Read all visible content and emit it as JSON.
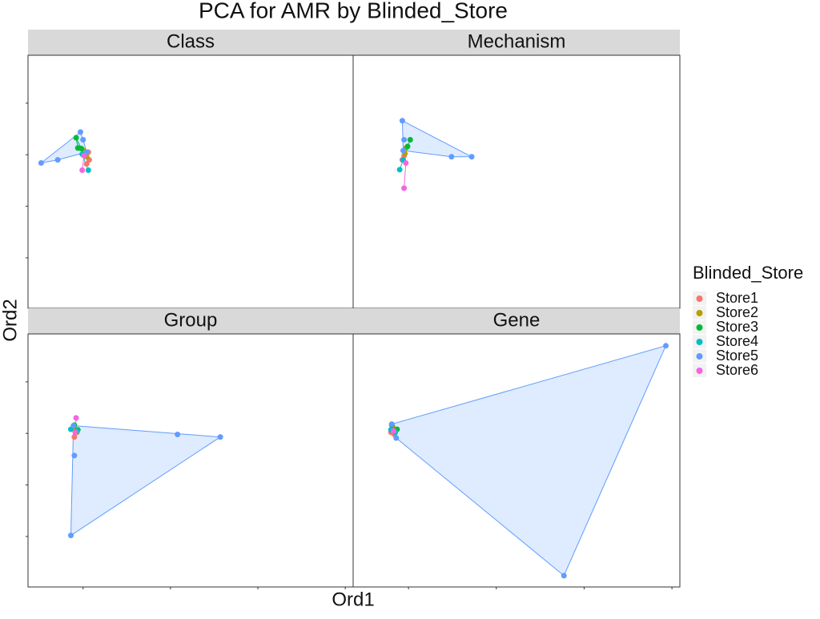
{
  "title": "PCA for AMR by Blinded_Store",
  "x_label": "Ord1",
  "y_label": "Ord2",
  "legend_title": "Blinded_Store",
  "chart_data": [
    {
      "type": "scatter",
      "title": "Class",
      "hull": true,
      "axis_text": false,
      "xlim": [
        -0.63,
        3.09
      ],
      "ylim": [
        -0.98,
        3.93
      ],
      "xticks": [
        0,
        1,
        2,
        3
      ],
      "yticks": [
        0,
        1,
        2,
        3
      ],
      "series": [
        {
          "name": "Store1",
          "color": "#F8766D",
          "x": [
            0.06,
            0.07,
            0.04
          ],
          "y": [
            2.05,
            1.9,
            1.82
          ]
        },
        {
          "name": "Store2",
          "color": "#B79F00",
          "x": [
            0.01,
            0.04
          ],
          "y": [
            2.08,
            1.96
          ]
        },
        {
          "name": "Store3",
          "color": "#00BA38",
          "x": [
            -0.08,
            -0.06,
            -0.02
          ],
          "y": [
            2.33,
            2.13,
            2.12
          ]
        },
        {
          "name": "Store4",
          "color": "#00BFC4",
          "x": [
            0.06,
            -0.01
          ],
          "y": [
            1.7,
            2.01
          ]
        },
        {
          "name": "Store5",
          "color": "#619CFF",
          "x": [
            -0.48,
            -0.29,
            -0.03,
            0.0,
            0.04
          ],
          "y": [
            1.84,
            1.9,
            2.44,
            2.29,
            2.05
          ]
        },
        {
          "name": "Store6",
          "color": "#F564E3",
          "x": [
            -0.01,
            0.01
          ],
          "y": [
            1.7,
            1.98
          ]
        }
      ]
    },
    {
      "type": "scatter",
      "title": "Mechanism",
      "hull": true,
      "axis_text": false,
      "xlim": [
        -0.63,
        3.09
      ],
      "ylim": [
        -0.98,
        3.93
      ],
      "xticks": [
        0,
        1,
        2,
        3
      ],
      "yticks": [
        0,
        1,
        2,
        3
      ],
      "series": [
        {
          "name": "Store1",
          "color": "#F8766D",
          "x": [
            -0.07,
            -0.05
          ],
          "y": [
            1.9,
            1.98
          ]
        },
        {
          "name": "Store2",
          "color": "#B79F00",
          "x": [
            -0.04,
            -0.03
          ],
          "y": [
            2.02,
            2.13
          ]
        },
        {
          "name": "Store3",
          "color": "#00BA38",
          "x": [
            0.02,
            -0.01
          ],
          "y": [
            2.29,
            2.16
          ]
        },
        {
          "name": "Store4",
          "color": "#00BFC4",
          "x": [
            -0.1,
            -0.06
          ],
          "y": [
            1.71,
            1.9
          ]
        },
        {
          "name": "Store5",
          "color": "#619CFF",
          "x": [
            -0.07,
            0.72,
            0.49,
            -0.05,
            -0.06
          ],
          "y": [
            2.66,
            1.96,
            1.96,
            2.29,
            2.08
          ]
        },
        {
          "name": "Store6",
          "color": "#F564E3",
          "x": [
            -0.05,
            -0.03
          ],
          "y": [
            1.35,
            1.84
          ]
        }
      ]
    },
    {
      "type": "scatter",
      "title": "Group",
      "hull": true,
      "axis_text": false,
      "xlim": [
        -0.63,
        3.09
      ],
      "ylim": [
        -0.98,
        3.93
      ],
      "xticks": [
        0,
        1,
        2,
        3
      ],
      "yticks": [
        0,
        1,
        2,
        3
      ],
      "series": [
        {
          "name": "Store1",
          "color": "#F8766D",
          "x": [
            -0.1,
            -0.08
          ],
          "y": [
            1.93,
            2.05
          ]
        },
        {
          "name": "Store2",
          "color": "#B79F00",
          "x": [
            -0.11,
            -0.07
          ],
          "y": [
            2.1,
            2.02
          ]
        },
        {
          "name": "Store3",
          "color": "#00BA38",
          "x": [
            -0.06,
            -0.1
          ],
          "y": [
            2.07,
            2.16
          ]
        },
        {
          "name": "Store4",
          "color": "#00BFC4",
          "x": [
            -0.14,
            -0.07
          ],
          "y": [
            2.08,
            2.05
          ]
        },
        {
          "name": "Store5",
          "color": "#619CFF",
          "x": [
            -0.14,
            -0.1,
            1.08,
            1.57,
            -0.11
          ],
          "y": [
            0.02,
            1.57,
            1.98,
            1.93,
            2.15
          ]
        },
        {
          "name": "Store6",
          "color": "#F564E3",
          "x": [
            -0.08,
            -0.09
          ],
          "y": [
            2.3,
            2.02
          ]
        }
      ]
    },
    {
      "type": "scatter",
      "title": "Gene",
      "hull": true,
      "axis_text": false,
      "xlim": [
        -0.63,
        3.09
      ],
      "ylim": [
        -0.98,
        3.93
      ],
      "xticks": [
        0,
        1,
        2,
        3
      ],
      "yticks": [
        0,
        1,
        2,
        3
      ],
      "series": [
        {
          "name": "Store1",
          "color": "#F8766D",
          "x": [
            -0.2,
            -0.16
          ],
          "y": [
            2.02,
            1.98
          ]
        },
        {
          "name": "Store2",
          "color": "#B79F00",
          "x": [
            -0.18,
            -0.17
          ],
          "y": [
            2.13,
            2.07
          ]
        },
        {
          "name": "Store3",
          "color": "#00BA38",
          "x": [
            -0.19,
            -0.13
          ],
          "y": [
            2.16,
            2.08
          ]
        },
        {
          "name": "Store4",
          "color": "#00BFC4",
          "x": [
            -0.2,
            -0.15
          ],
          "y": [
            2.07,
            2.02
          ]
        },
        {
          "name": "Store5",
          "color": "#619CFF",
          "x": [
            2.93,
            1.77,
            -0.14,
            -0.19
          ],
          "y": [
            3.7,
            -0.76,
            1.91,
            2.18
          ]
        },
        {
          "name": "Store6",
          "color": "#F564E3",
          "x": [
            -0.17
          ],
          "y": [
            2.05
          ]
        }
      ]
    }
  ]
}
